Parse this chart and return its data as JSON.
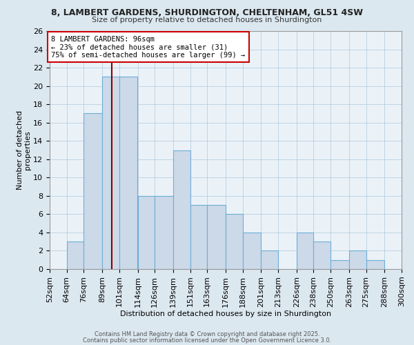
{
  "title_line1": "8, LAMBERT GARDENS, SHURDINGTON, CHELTENHAM, GL51 4SW",
  "title_line2": "Size of property relative to detached houses in Shurdington",
  "xlabel": "Distribution of detached houses by size in Shurdington",
  "ylabel": "Number of detached\nproperties",
  "footnote1": "Contains HM Land Registry data © Crown copyright and database right 2025.",
  "footnote2": "Contains public sector information licensed under the Open Government Licence 3.0.",
  "bin_edges": [
    52,
    64,
    76,
    89,
    101,
    114,
    126,
    139,
    151,
    163,
    176,
    188,
    201,
    213,
    226,
    238,
    250,
    263,
    275,
    288,
    300
  ],
  "bin_labels": [
    "52sqm",
    "64sqm",
    "76sqm",
    "89sqm",
    "101sqm",
    "114sqm",
    "126sqm",
    "139sqm",
    "151sqm",
    "163sqm",
    "176sqm",
    "188sqm",
    "201sqm",
    "213sqm",
    "226sqm",
    "238sqm",
    "250sqm",
    "263sqm",
    "275sqm",
    "288sqm",
    "300sqm"
  ],
  "counts": [
    0,
    3,
    17,
    21,
    21,
    8,
    8,
    13,
    7,
    7,
    6,
    4,
    2,
    0,
    4,
    3,
    1,
    2,
    1,
    0
  ],
  "vline_x": 96,
  "bar_color": "#ccd9e8",
  "bar_edge_color": "#6baed6",
  "vline_color": "#8b0000",
  "annotation_text": "8 LAMBERT GARDENS: 96sqm\n← 23% of detached houses are smaller (31)\n75% of semi-detached houses are larger (99) →",
  "annotation_box_color": "#ffffff",
  "annotation_box_edge_color": "#cc0000",
  "ylim": [
    0,
    26
  ],
  "ytick_max": 26,
  "ytick_step": 2,
  "background_color": "#dce8f0",
  "plot_background": "#eaf2f8",
  "grid_color": "#b8cfe0"
}
